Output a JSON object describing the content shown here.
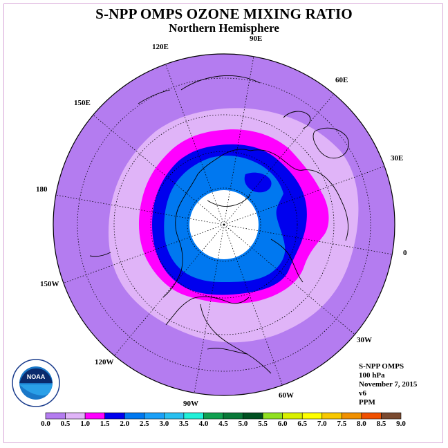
{
  "title": "S-NPP OMPS OZONE MIXING RATIO",
  "subtitle": "Northern Hemisphere",
  "longitude_labels": [
    "90E",
    "60E",
    "30E",
    "0",
    "30W",
    "60W",
    "90W",
    "120W",
    "150W",
    "180",
    "150E",
    "120E"
  ],
  "info": {
    "instrument": "S-NPP OMPS",
    "level": "100 hPa",
    "date": "November 7, 2015",
    "version": "v6",
    "units": "PPM"
  },
  "logo_text": "NOAA",
  "colorbar": {
    "ticks": [
      "0.0",
      "0.5",
      "1.0",
      "1.5",
      "2.0",
      "2.5",
      "3.0",
      "3.5",
      "4.0",
      "4.5",
      "5.0",
      "5.5",
      "6.0",
      "6.5",
      "7.0",
      "7.5",
      "8.0",
      "8.5",
      "9.0"
    ],
    "colors": [
      "#b47cf0",
      "#e0b4f8",
      "#ff00ff",
      "#0000ee",
      "#0078f0",
      "#1aa0f8",
      "#28c0f0",
      "#20f0d8",
      "#10a050",
      "#087838",
      "#005020",
      "#90e020",
      "#d8f000",
      "#ffff00",
      "#f8c800",
      "#f09000",
      "#f05000",
      "#f00000",
      "#7a4a30"
    ]
  },
  "colors": {
    "band_0_0.5": "#b47cf0",
    "band_0.5_1.0": "#e0b4f8",
    "band_1.0_1.5": "#ff00ff",
    "band_1.5_2.0": "#0000ee",
    "band_2.0_2.5": "#0078f0",
    "no_data": "#ffffff"
  }
}
